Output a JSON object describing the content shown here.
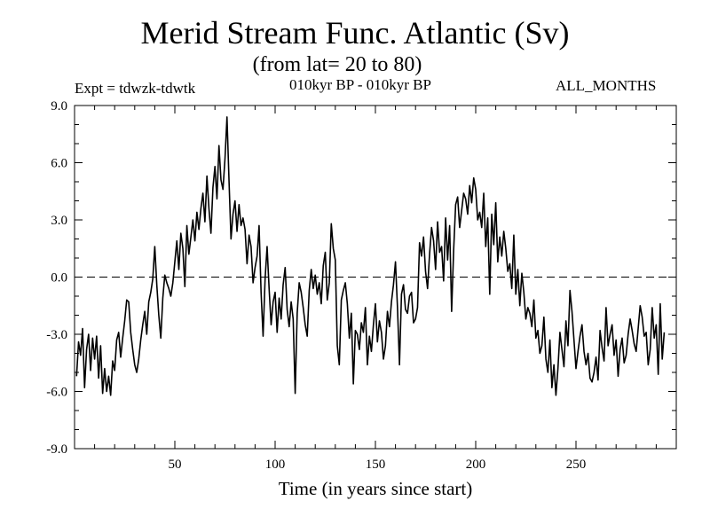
{
  "header": {
    "expt": "Expt = tdwzk-tdwtk",
    "period": "010kyr BP - 010kyr BP",
    "months": "ALL_MONTHS"
  },
  "chart_data": {
    "type": "line",
    "title": "Merid Stream Func. Atlantic (Sv)",
    "subtitle": "(from lat= 20 to 80)",
    "xlabel": "Time (in years since start)",
    "ylabel": "",
    "xlim": [
      0,
      300
    ],
    "ylim": [
      -9,
      9
    ],
    "xticks": [
      50,
      100,
      150,
      200,
      250
    ],
    "yticks": [
      9,
      6,
      3,
      0,
      -3,
      -6,
      -9
    ],
    "ytick_labels": [
      "9.0",
      "6.0",
      "3.0",
      "0.0",
      "-3.0",
      "-6.0",
      "-9.0"
    ],
    "reference_line": {
      "y": 0,
      "style": "dashed"
    },
    "series": [
      {
        "name": "tdwzk-tdwtk",
        "x_start": 1,
        "x_step": 1,
        "values": [
          -5.2,
          -3.4,
          -4.1,
          -2.7,
          -5.8,
          -3.8,
          -3.0,
          -4.9,
          -3.2,
          -4.3,
          -3.1,
          -5.3,
          -3.6,
          -6.1,
          -4.8,
          -6.0,
          -5.2,
          -6.2,
          -4.4,
          -4.9,
          -3.3,
          -2.9,
          -4.2,
          -3.2,
          -2.3,
          -1.2,
          -1.3,
          -2.9,
          -3.8,
          -4.6,
          -5.0,
          -4.3,
          -3.3,
          -2.5,
          -1.8,
          -3.0,
          -1.3,
          -0.8,
          -0.1,
          1.6,
          -0.4,
          -2.0,
          -3.2,
          -1.1,
          0.1,
          -0.3,
          -0.6,
          -1.0,
          -0.3,
          0.8,
          1.9,
          0.4,
          2.3,
          1.5,
          -0.5,
          2.7,
          1.2,
          2.1,
          3.0,
          1.9,
          3.4,
          2.5,
          3.6,
          4.4,
          2.9,
          5.3,
          3.6,
          2.3,
          4.7,
          5.8,
          4.1,
          6.9,
          5.1,
          4.6,
          6.2,
          8.4,
          5.1,
          2.0,
          3.3,
          4.0,
          2.4,
          3.8,
          2.7,
          3.1,
          2.5,
          0.7,
          2.2,
          1.6,
          -0.3,
          0.5,
          1.1,
          2.7,
          -0.8,
          -3.1,
          -0.1,
          1.6,
          -0.6,
          -2.5,
          -1.3,
          -0.8,
          -2.9,
          -1.1,
          -2.2,
          -0.4,
          0.5,
          -1.7,
          -2.6,
          -1.3,
          -2.2,
          -6.1,
          -1.9,
          -0.3,
          -0.8,
          -1.6,
          -2.5,
          -3.1,
          -0.7,
          0.4,
          -0.6,
          0.1,
          -0.9,
          -0.3,
          -1.4,
          0.6,
          1.3,
          -1.2,
          -0.3,
          2.8,
          1.5,
          0.9,
          -3.6,
          -4.6,
          -1.2,
          -0.7,
          -0.3,
          -1.4,
          -3.2,
          -1.9,
          -5.6,
          -2.8,
          -3.0,
          -3.8,
          -2.4,
          -2.9,
          -1.6,
          -4.6,
          -3.1,
          -3.9,
          -2.5,
          -1.4,
          -3.4,
          -2.3,
          -2.9,
          -4.3,
          -3.6,
          -1.8,
          -2.6,
          -1.3,
          -0.4,
          0.8,
          -1.6,
          -4.6,
          -0.9,
          -0.4,
          -1.7,
          -1.9,
          -1.0,
          -0.8,
          -2.4,
          -2.2,
          -1.6,
          1.8,
          1.1,
          2.1,
          0.3,
          -0.6,
          1.2,
          2.6,
          1.9,
          0.4,
          2.9,
          1.3,
          1.6,
          -0.2,
          3.1,
          0.9,
          2.7,
          -1.8,
          1.4,
          3.8,
          4.2,
          2.6,
          3.5,
          4.4,
          4.1,
          3.3,
          4.8,
          3.9,
          5.2,
          4.6,
          3.0,
          3.4,
          2.6,
          4.4,
          1.6,
          3.1,
          -0.9,
          3.3,
          1.7,
          3.9,
          0.8,
          2.1,
          1.1,
          2.4,
          1.5,
          0.3,
          0.7,
          -0.6,
          2.2,
          -0.9,
          0.4,
          -1.5,
          0.2,
          -0.8,
          -2.2,
          -1.6,
          -1.9,
          -2.6,
          -1.2,
          -3.2,
          -2.8,
          -4.0,
          -3.6,
          -2.1,
          -4.3,
          -5.0,
          -3.3,
          -5.8,
          -4.6,
          -6.2,
          -4.8,
          -2.9,
          -3.8,
          -4.7,
          -2.3,
          -3.6,
          -0.7,
          -1.8,
          -3.3,
          -4.8,
          -3.9,
          -3.1,
          -2.5,
          -3.9,
          -4.6,
          -4.0,
          -5.3,
          -5.5,
          -5.0,
          -4.2,
          -5.4,
          -2.8,
          -3.7,
          -4.4,
          -1.6,
          -3.6,
          -3.0,
          -2.5,
          -4.1,
          -3.3,
          -5.2,
          -3.8,
          -3.2,
          -4.5,
          -4.1,
          -3.0,
          -2.2,
          -2.8,
          -3.5,
          -3.9,
          -2.7,
          -1.5,
          -2.1,
          -3.1,
          -2.9,
          -4.6,
          -3.8,
          -1.6,
          -3.2,
          -2.5,
          -5.1,
          -1.4,
          -4.3,
          -2.9
        ]
      }
    ]
  }
}
